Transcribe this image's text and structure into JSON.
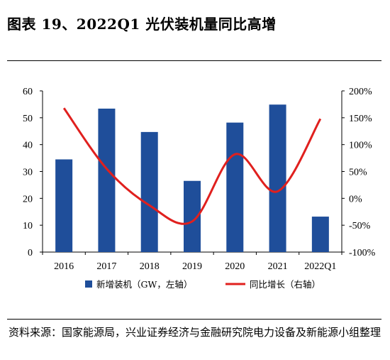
{
  "figure": {
    "title": "图表 19、2022Q1 光伏装机量同比高增",
    "source": "资料来源：国家能源局，兴业证券经济与金融研究院电力设备及新能源小组整理"
  },
  "chart_data": {
    "type": "bar",
    "categories": [
      "2016",
      "2017",
      "2018",
      "2019",
      "2020",
      "2021",
      "2022Q1"
    ],
    "series": [
      {
        "name": "新增装机（GW，左轴）",
        "type": "bar",
        "axis": "left",
        "color": "#1F4E9A",
        "values": [
          34.5,
          53.4,
          44.7,
          26.5,
          48.2,
          54.9,
          13.2
        ]
      },
      {
        "name": "同比增长（右轴）",
        "type": "line",
        "axis": "right",
        "color": "#E0201E",
        "values": [
          168,
          55,
          -13,
          -43,
          82,
          13,
          148
        ]
      }
    ],
    "left_axis": {
      "min": 0,
      "max": 60,
      "ticks": [
        "0",
        "10",
        "20",
        "30",
        "40",
        "50",
        "60"
      ]
    },
    "right_axis": {
      "min": -100,
      "max": 200,
      "ticks": [
        "-100%",
        "-50%",
        "0%",
        "50%",
        "100%",
        "150%",
        "200%"
      ]
    },
    "legend_position": "bottom",
    "grid": false
  }
}
